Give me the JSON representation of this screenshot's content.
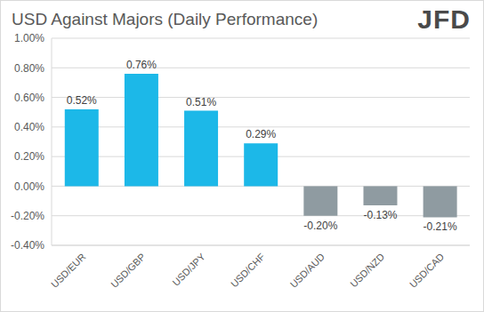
{
  "chart_data": {
    "type": "bar",
    "title": "USD Against Majors (Daily Performance)",
    "annotations": [
      "JFD"
    ],
    "categories": [
      "USD/EUR",
      "USD/GBP",
      "USD/JPY",
      "USD/CHF",
      "USD/AUD",
      "USD/NZD",
      "USD/CAD"
    ],
    "values": [
      0.52,
      0.76,
      0.51,
      0.29,
      -0.2,
      -0.13,
      -0.21
    ],
    "value_labels": [
      "0.52%",
      "0.76%",
      "0.51%",
      "0.29%",
      "-0.20%",
      "-0.13%",
      "-0.21%"
    ],
    "colors": [
      "#1cb8e8",
      "#1cb8e8",
      "#1cb8e8",
      "#1cb8e8",
      "#8f9ba1",
      "#8f9ba1",
      "#8f9ba1"
    ],
    "ylim": [
      -0.4,
      1.0
    ],
    "yticks": [
      {
        "value": -0.4,
        "label": "-0.40%"
      },
      {
        "value": -0.2,
        "label": "-0.20%"
      },
      {
        "value": 0,
        "label": "0.00%"
      },
      {
        "value": 0.2,
        "label": "0.20%"
      },
      {
        "value": 0.4,
        "label": "0.40%"
      },
      {
        "value": 0.6,
        "label": "0.60%"
      },
      {
        "value": 0.8,
        "label": "0.80%"
      },
      {
        "value": 1.0,
        "label": "1.00%"
      }
    ],
    "grid": true,
    "data_labels": true
  }
}
